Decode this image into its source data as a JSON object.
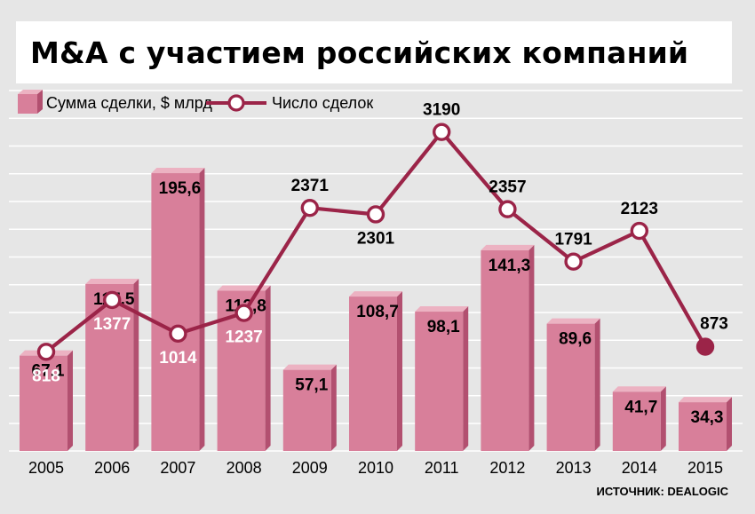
{
  "title": "M&A с участием российских компаний",
  "source": "ИСТОЧНИК: DEALOGIC",
  "colors": {
    "bar_front": "#d87f9a",
    "bar_side": "#b25070",
    "bar_top": "#ecb2c2",
    "line": "#9b2448",
    "marker_fill": "#ffffff",
    "last_marker_fill": "#9b2448",
    "grid": "#ffffff",
    "background": "#e6e6e6"
  },
  "chart_data": {
    "type": "bar",
    "categories": [
      "2005",
      "2006",
      "2007",
      "2008",
      "2009",
      "2010",
      "2011",
      "2012",
      "2013",
      "2014",
      "2015"
    ],
    "series": [
      {
        "name": "Сумма сделки, $ млрд",
        "type": "bar",
        "values": [
          67.1,
          117.5,
          195.6,
          112.8,
          57.1,
          108.7,
          98.1,
          141.3,
          89.6,
          41.7,
          34.3
        ],
        "labels": [
          "67,1",
          "117,5",
          "195,6",
          "112,8",
          "57,1",
          "108,7",
          "98,1",
          "141,3",
          "89,6",
          "41,7",
          "34,3"
        ]
      },
      {
        "name": "Число сделок",
        "type": "line",
        "values": [
          818,
          1377,
          1014,
          1237,
          2371,
          2301,
          3190,
          2357,
          1791,
          2123,
          873
        ],
        "labels": [
          "818",
          "1377",
          "1014",
          "1237",
          "2371",
          "2301",
          "3190",
          "2357",
          "1791",
          "2123",
          "873"
        ]
      }
    ],
    "legend": "top-left",
    "grid": true
  }
}
